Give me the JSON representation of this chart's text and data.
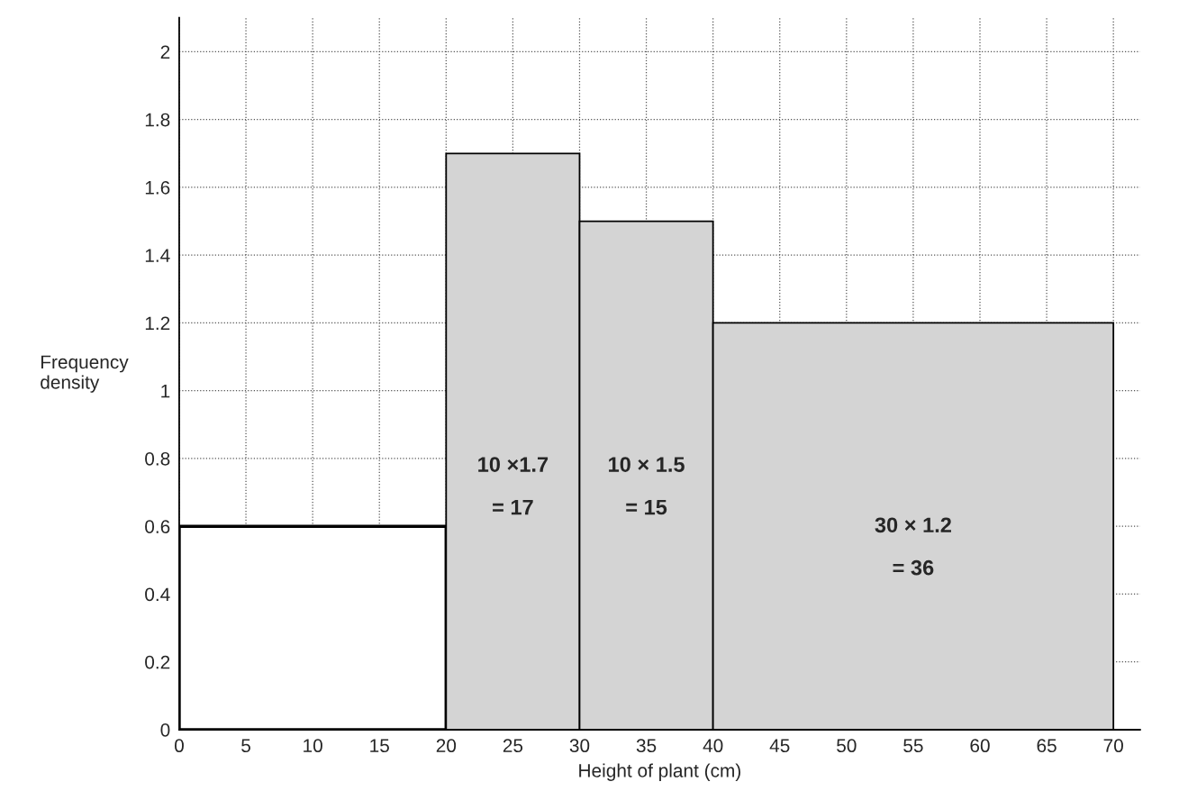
{
  "chart_data": {
    "type": "histogram",
    "xlabel": "Height of plant (cm)",
    "ylabel": "Frequency\ndensity",
    "bins": [
      0,
      20,
      30,
      40,
      70
    ],
    "values": [
      0.6,
      1.7,
      1.5,
      1.2
    ],
    "colors": [
      "#ffffff",
      "#d4d4d4",
      "#d4d4d4",
      "#d4d4d4"
    ],
    "xlim": [
      0,
      72
    ],
    "ylim": [
      0,
      2.1
    ],
    "xticks": [
      0,
      5,
      10,
      15,
      20,
      25,
      30,
      35,
      40,
      45,
      50,
      55,
      60,
      65,
      70
    ],
    "yticks": [
      0,
      0.2,
      0.4,
      0.6,
      0.8,
      1,
      1.2,
      1.4,
      1.6,
      1.8,
      2
    ],
    "grid": true,
    "line_style": "dotted",
    "annotations": [
      "10 ×1.7\n\n= 17",
      "10 × 1.5\n\n= 15",
      "30 × 1.2\n\n= 36"
    ]
  }
}
